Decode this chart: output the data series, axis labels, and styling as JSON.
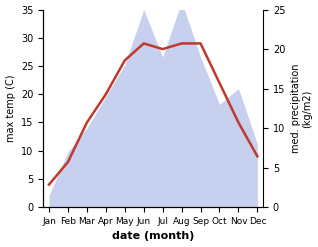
{
  "months": [
    "Jan",
    "Feb",
    "Mar",
    "Apr",
    "May",
    "Jun",
    "Jul",
    "Aug",
    "Sep",
    "Oct",
    "Nov",
    "Dec"
  ],
  "temperature": [
    4,
    8,
    15,
    20,
    26,
    29,
    28,
    29,
    29,
    22,
    15,
    9
  ],
  "precipitation": [
    1.5,
    7,
    10,
    14,
    18,
    25,
    19,
    26,
    19,
    13,
    15,
    8
  ],
  "temp_color": "#c0392b",
  "precip_color": "#b0bce8",
  "title": "",
  "xlabel": "date (month)",
  "ylabel_left": "max temp (C)",
  "ylabel_right": "med. precipitation\n(kg/m2)",
  "ylim_left": [
    0,
    35
  ],
  "ylim_right": [
    0,
    25
  ],
  "yticks_left": [
    0,
    5,
    10,
    15,
    20,
    25,
    30,
    35
  ],
  "yticks_right": [
    0,
    5,
    10,
    15,
    20,
    25
  ],
  "temp_lw": 1.8,
  "background_color": "#ffffff"
}
